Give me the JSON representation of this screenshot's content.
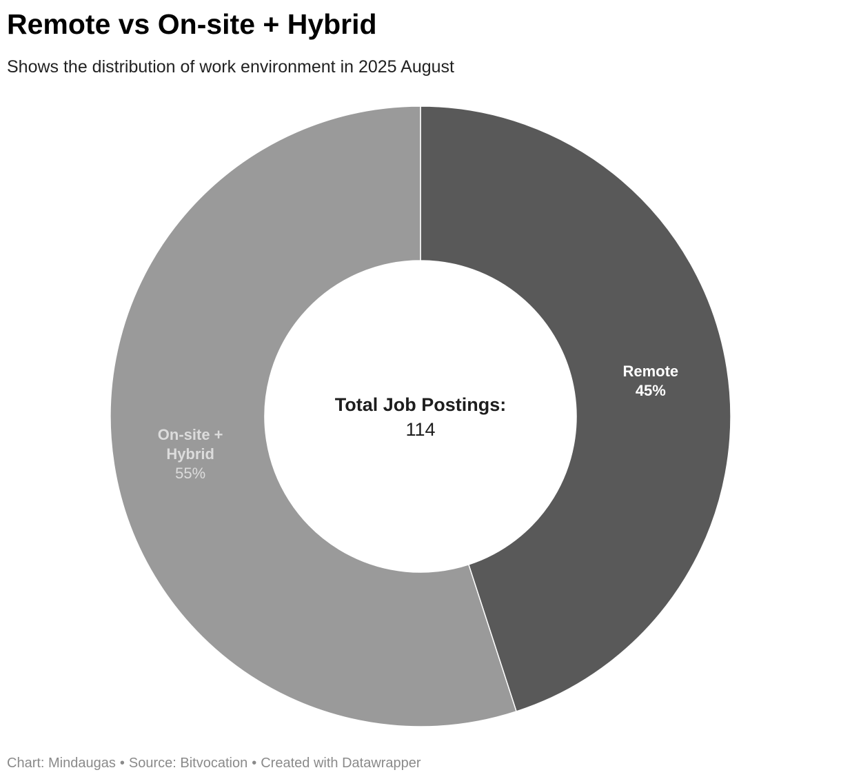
{
  "header": {
    "title": "Remote vs On-site + Hybrid",
    "subtitle": "Shows the distribution of work environment in 2025 August"
  },
  "chart_data": {
    "type": "pie",
    "donut": true,
    "categories": [
      "Remote",
      "On-site + Hybrid"
    ],
    "values": [
      45,
      55
    ],
    "value_labels": [
      "45%",
      "55%"
    ],
    "label_lines": [
      [
        "Remote"
      ],
      [
        "On-site +",
        "Hybrid"
      ]
    ],
    "colors": [
      "#595959",
      "#9a9a9a"
    ],
    "label_colors": [
      "#ffffff",
      "#dcdcdc"
    ],
    "center_label": "Total Job Postings:",
    "center_value": "114"
  },
  "footer": {
    "chart_credit": "Chart: Mindaugas",
    "source": "Source: Bitvocation",
    "created_with": "Created with Datawrapper",
    "separator": "•"
  }
}
